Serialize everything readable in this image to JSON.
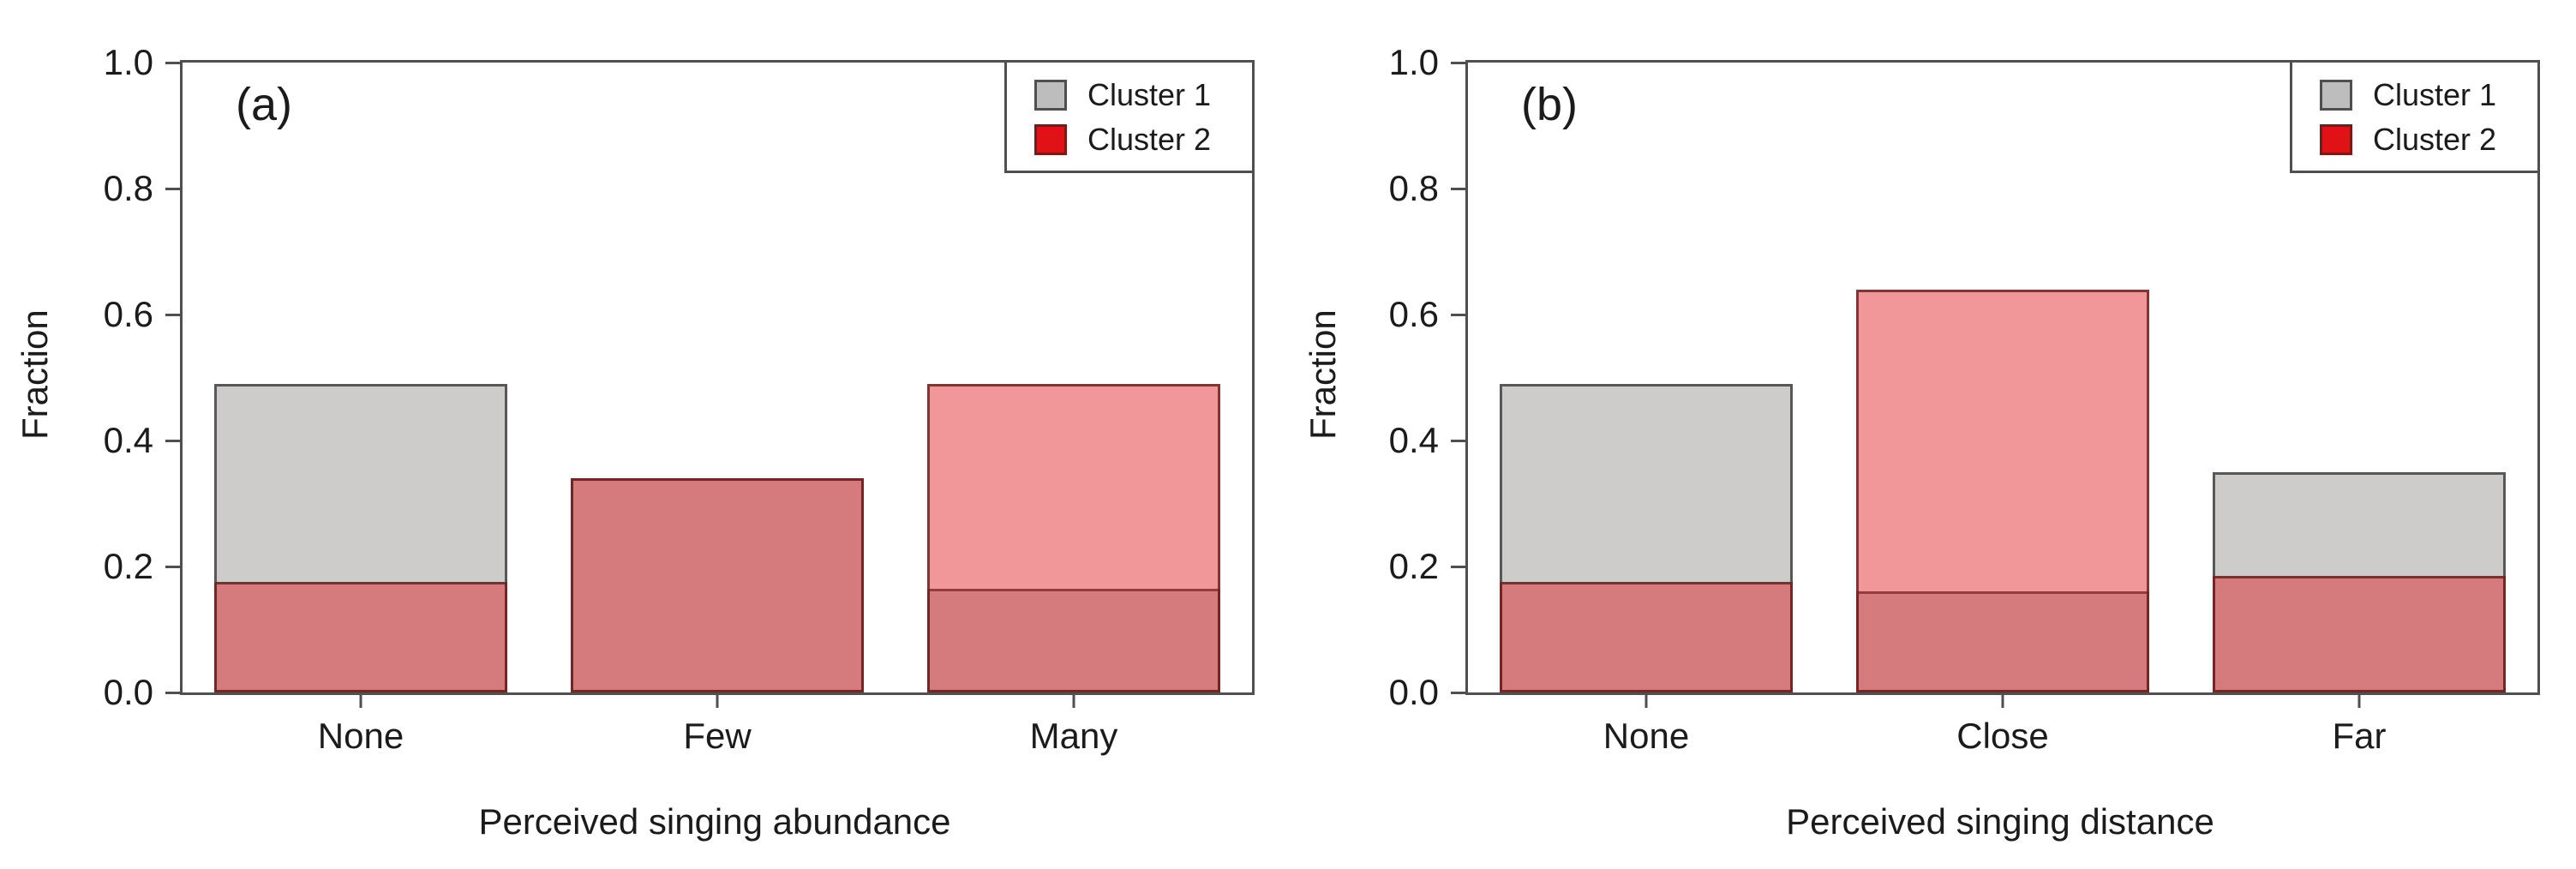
{
  "figure": {
    "background": "#ffffff",
    "axis_color": "#4f4f4f",
    "text_color": "#1b1b1b"
  },
  "styles": {
    "cluster1_fill": "#cdccca",
    "cluster1_border": "#585858",
    "cluster2_fill": "rgba(224,25,30,0.45)",
    "cluster2_border": "rgba(110,35,32,0.85)",
    "legend_marker1_fill": "#bdbdbd",
    "legend_marker1_border": "#4f4f4f",
    "legend_marker2_fill": "#e11216",
    "legend_marker2_border": "#7a1a18"
  },
  "chart_data": [
    {
      "type": "bar",
      "panel_label": "(a)",
      "xlabel": "Perceived singing abundance",
      "ylabel": "Fraction",
      "categories": [
        "None",
        "Few",
        "Many"
      ],
      "series": [
        {
          "name": "Cluster 1",
          "values": [
            0.49,
            0.34,
            0.165
          ]
        },
        {
          "name": "Cluster 2",
          "values": [
            0.175,
            0.34,
            0.49
          ]
        }
      ],
      "ylim": [
        0,
        1
      ],
      "yticks": [
        {
          "value": 1.0,
          "label": "1.0"
        },
        {
          "value": 0.8,
          "label": "0.8"
        },
        {
          "value": 0.6,
          "label": "0.6"
        },
        {
          "value": 0.4,
          "label": "0.4"
        },
        {
          "value": 0.2,
          "label": "0.2"
        },
        {
          "value": 0.0,
          "label": "0.0"
        }
      ],
      "grid": false,
      "legend_position": "top-right",
      "bar_style": "overlapped-transparent"
    },
    {
      "type": "bar",
      "panel_label": "(b)",
      "xlabel": "Perceived singing distance",
      "ylabel": "Fraction",
      "categories": [
        "None",
        "Close",
        "Far"
      ],
      "series": [
        {
          "name": "Cluster 1",
          "values": [
            0.49,
            0.16,
            0.35
          ]
        },
        {
          "name": "Cluster 2",
          "values": [
            0.175,
            0.64,
            0.185
          ]
        }
      ],
      "ylim": [
        0,
        1
      ],
      "yticks": [
        {
          "value": 1.0,
          "label": "1.0"
        },
        {
          "value": 0.8,
          "label": "0.8"
        },
        {
          "value": 0.6,
          "label": "0.6"
        },
        {
          "value": 0.4,
          "label": "0.4"
        },
        {
          "value": 0.2,
          "label": "0.2"
        },
        {
          "value": 0.0,
          "label": "0.0"
        }
      ],
      "grid": false,
      "legend_position": "top-right",
      "bar_style": "overlapped-transparent"
    }
  ]
}
